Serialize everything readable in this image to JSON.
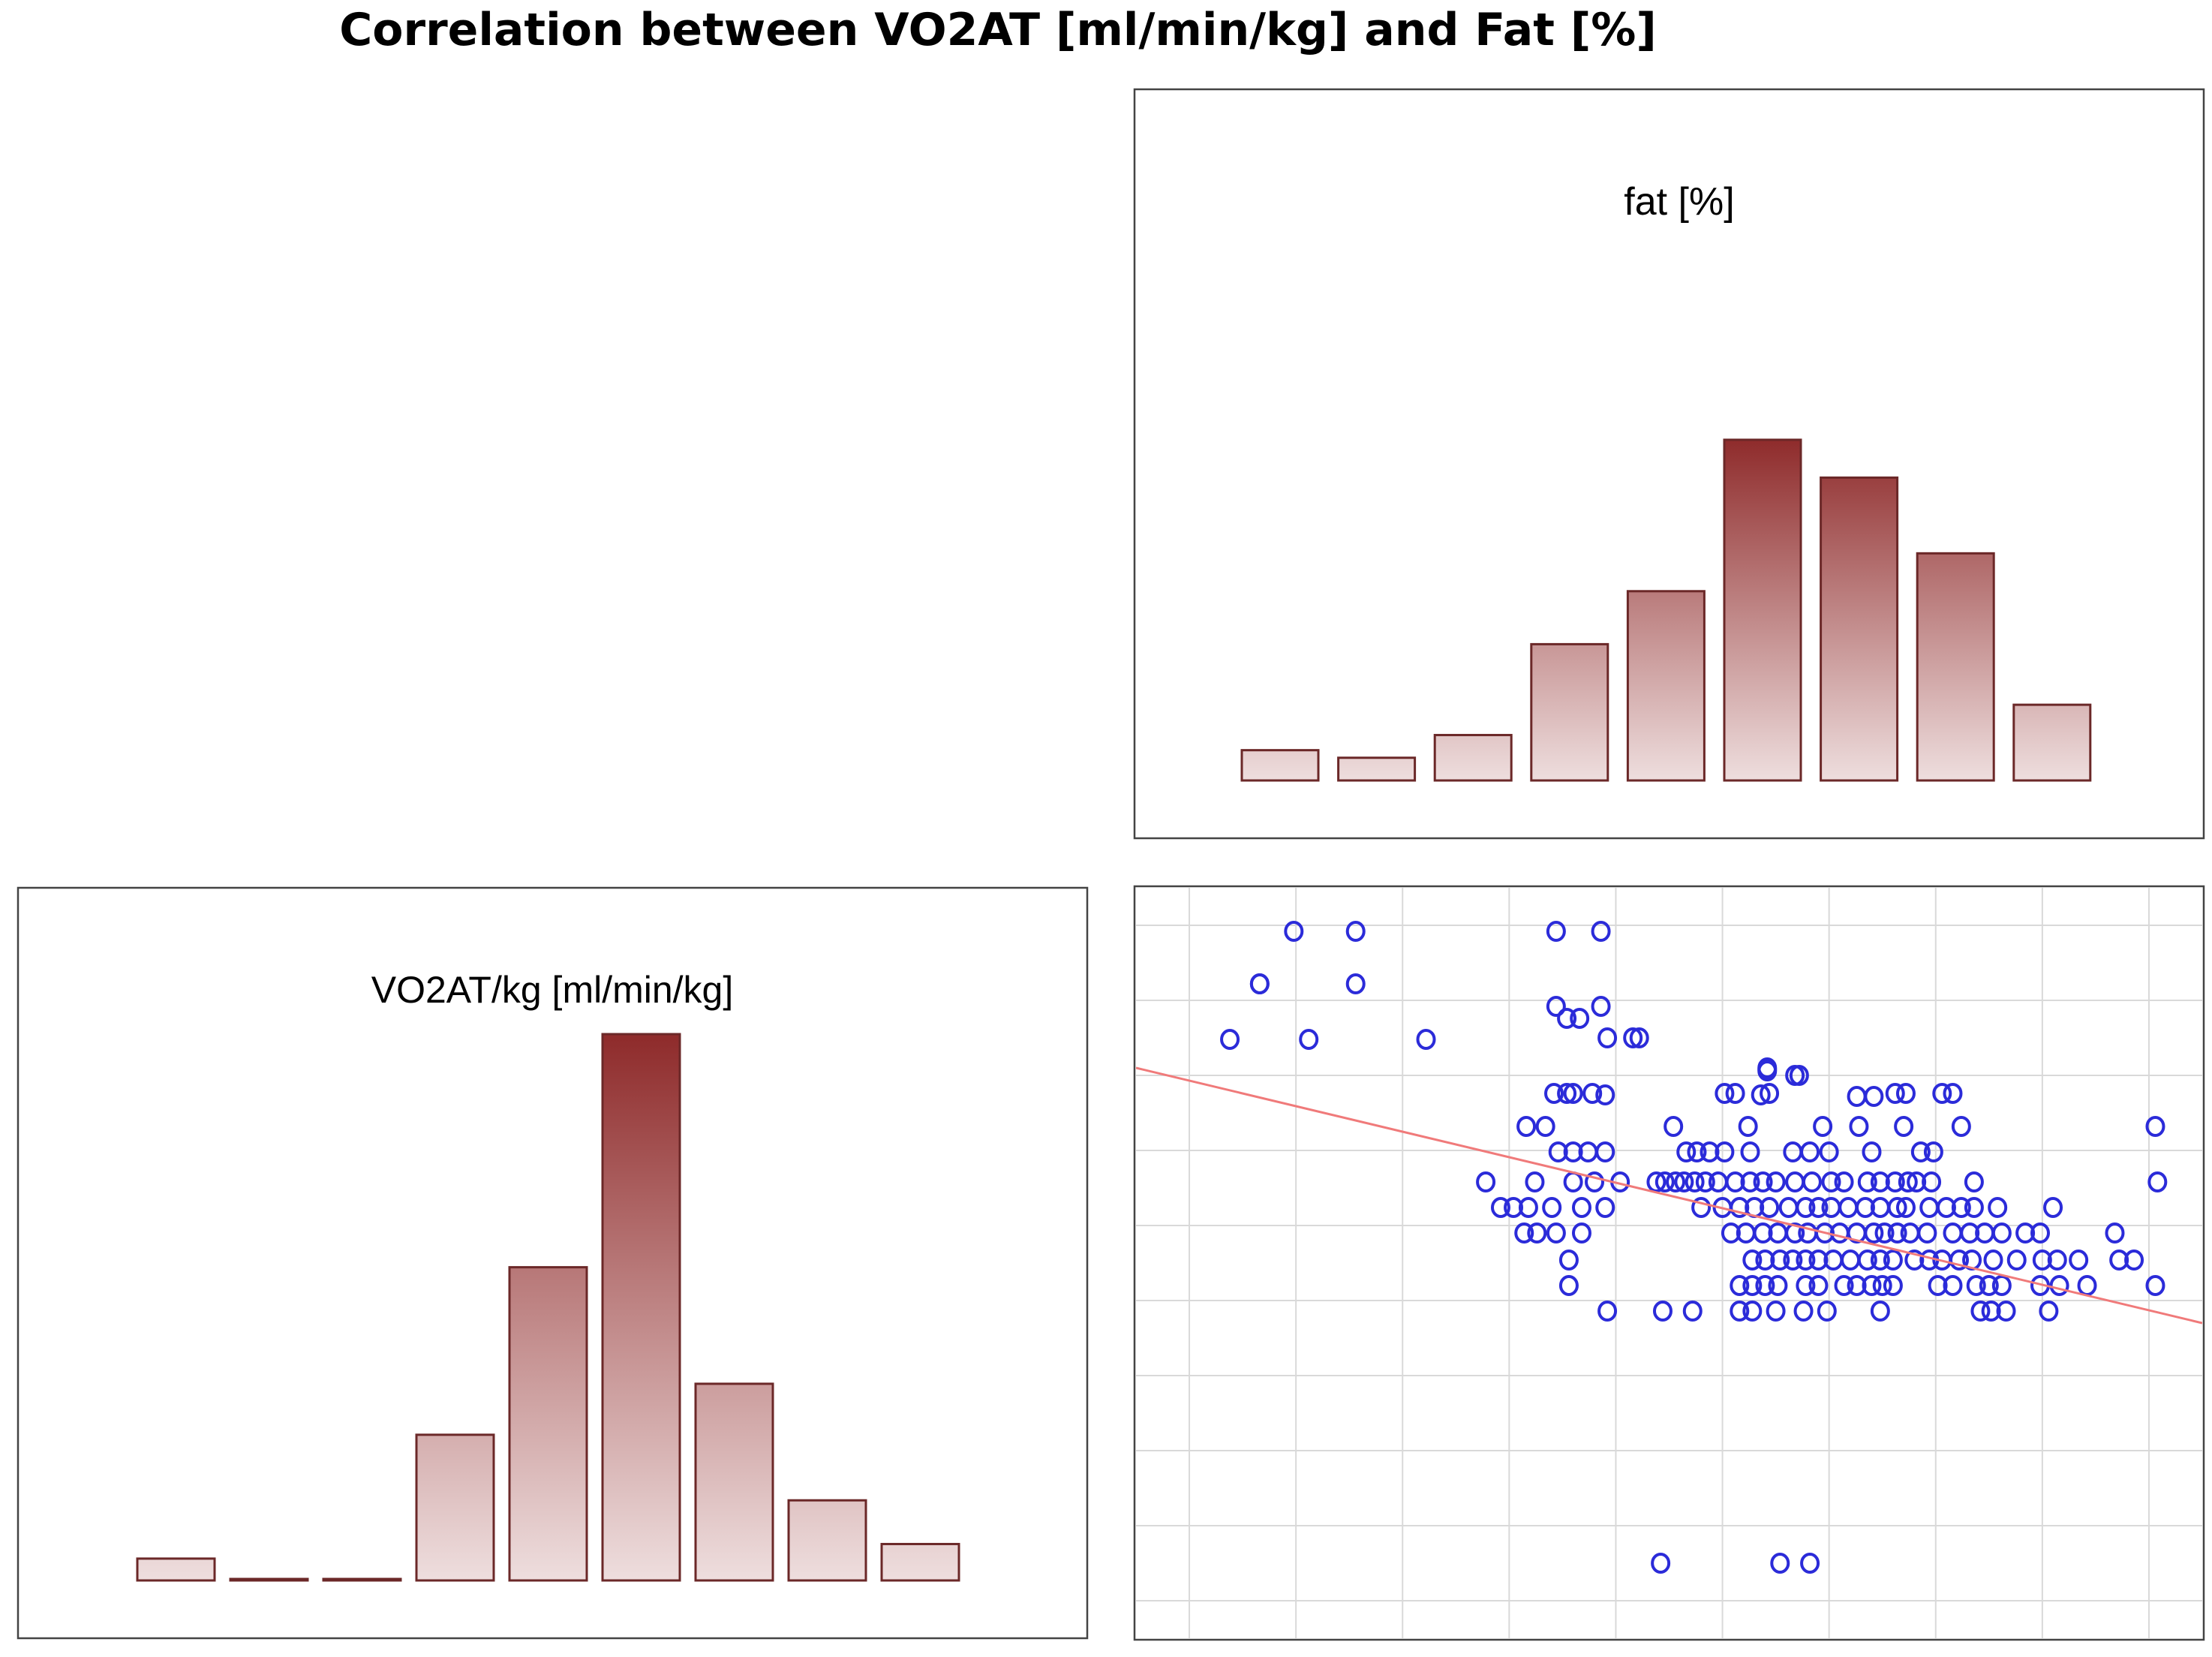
{
  "title": "Correlation between VO2AT [ml/min/kg] and Fat [%]",
  "colors": {
    "bar_top": "#8e2a2a",
    "bar_bottom": "#eedede",
    "bar_stroke": "#6b2828",
    "point": "#2b2bd9",
    "regression": "#f07a7a",
    "grid": "#d9d9d9",
    "frame": "#444444"
  },
  "chart_data": [
    {
      "type": "bar",
      "panel": "top-right",
      "title": "fat [%]",
      "values": [
        4,
        3,
        6,
        18,
        25,
        45,
        40,
        30,
        10
      ],
      "ylim": [
        0,
        45
      ],
      "grid": false
    },
    {
      "type": "bar",
      "panel": "bottom-left",
      "title": "VO2AT/kg [ml/min/kg]",
      "values": [
        3,
        0,
        0,
        20,
        43,
        75,
        27,
        11,
        5
      ],
      "ylim": [
        0,
        75
      ],
      "grid": false
    },
    {
      "type": "scatter",
      "panel": "bottom-right",
      "title": "",
      "xlabel": "",
      "ylabel": "",
      "xlim": [
        0,
        50
      ],
      "ylim": [
        0,
        50
      ],
      "grid": true,
      "x_gridlines": [
        2.5,
        7.5,
        12.5,
        17.5,
        22.5,
        27.5,
        32.5,
        37.5,
        42.5,
        47.5
      ],
      "y_gridlines": [
        2.5,
        7.5,
        12.5,
        17.5,
        22.5,
        27.5,
        32.5,
        37.5,
        42.5,
        47.5
      ],
      "regression_line": {
        "x": [
          0,
          50
        ],
        "y": [
          38,
          21
        ]
      },
      "x": [
        7.4,
        10.3,
        10.3,
        5.8,
        5.8,
        8.1,
        4.4,
        13.6,
        19.7,
        21.8,
        19.7,
        21.8,
        20.2,
        20.8,
        22.1,
        23.3,
        23.6,
        29.6,
        29.6,
        29.6,
        30.9,
        31.1,
        34.6,
        33.8,
        20.2,
        19.6,
        20.5,
        21.4,
        22.0,
        27.6,
        28.1,
        29.3,
        29.7,
        35.6,
        36.1,
        37.8,
        38.3,
        18.3,
        19.2,
        25.2,
        28.7,
        32.2,
        33.9,
        36.0,
        38.7,
        47.8,
        19.8,
        20.5,
        21.2,
        22.0,
        25.8,
        26.3,
        26.9,
        27.6,
        28.8,
        30.8,
        31.6,
        32.5,
        34.5,
        36.8,
        37.4,
        16.4,
        18.7,
        20.5,
        21.5,
        22.7,
        24.4,
        24.8,
        25.3,
        25.7,
        26.2,
        26.7,
        27.3,
        28.1,
        28.8,
        29.4,
        30.0,
        30.9,
        31.7,
        32.6,
        33.2,
        34.3,
        34.9,
        35.6,
        36.2,
        36.6,
        37.3,
        39.3,
        47.9,
        17.1,
        17.7,
        18.4,
        19.5,
        20.9,
        22.0,
        26.5,
        27.5,
        28.3,
        29.0,
        29.7,
        30.6,
        31.4,
        32.0,
        32.6,
        33.4,
        34.2,
        34.9,
        35.7,
        36.1,
        37.2,
        38.0,
        38.7,
        39.3,
        40.4,
        43.0,
        18.2,
        18.8,
        19.7,
        20.9,
        27.9,
        28.6,
        29.4,
        30.1,
        30.9,
        31.5,
        32.3,
        33.0,
        33.8,
        34.6,
        35.1,
        35.7,
        36.3,
        37.1,
        38.3,
        39.1,
        39.8,
        40.6,
        41.7,
        42.4,
        45.9,
        20.3,
        28.9,
        29.5,
        30.2,
        30.8,
        31.4,
        32.0,
        32.7,
        33.5,
        34.3,
        34.9,
        35.5,
        36.5,
        37.2,
        37.8,
        38.6,
        39.2,
        40.2,
        41.3,
        42.5,
        43.2,
        44.2,
        46.1,
        46.8,
        20.3,
        28.3,
        28.9,
        29.5,
        30.1,
        31.4,
        32.0,
        33.2,
        33.8,
        34.5,
        35.0,
        35.5,
        37.6,
        38.3,
        39.4,
        40.0,
        40.6,
        42.4,
        43.3,
        44.6,
        47.8,
        22.1,
        24.7,
        26.1,
        28.3,
        28.9,
        30.0,
        31.3,
        32.4,
        34.9,
        39.6,
        40.1,
        40.8,
        42.8,
        24.6,
        31.6,
        30.2
      ],
      "y": [
        47.1,
        47.1,
        43.6,
        43.6,
        43.6,
        39.9,
        39.9,
        39.9,
        47.1,
        47.1,
        42.1,
        42.1,
        41.3,
        41.3,
        40.0,
        40.0,
        40.0,
        38.0,
        37.9,
        37.8,
        37.5,
        37.5,
        36.1,
        36.1,
        36.3,
        36.3,
        36.3,
        36.3,
        36.2,
        36.3,
        36.3,
        36.2,
        36.3,
        36.3,
        36.3,
        36.3,
        36.3,
        34.1,
        34.1,
        34.1,
        34.1,
        34.1,
        34.1,
        34.1,
        34.1,
        34.1,
        32.4,
        32.4,
        32.4,
        32.4,
        32.4,
        32.4,
        32.4,
        32.4,
        32.4,
        32.4,
        32.4,
        32.4,
        32.4,
        32.4,
        32.4,
        30.4,
        30.4,
        30.4,
        30.4,
        30.4,
        30.4,
        30.4,
        30.4,
        30.4,
        30.4,
        30.4,
        30.4,
        30.4,
        30.4,
        30.4,
        30.4,
        30.4,
        30.4,
        30.4,
        30.4,
        30.4,
        30.4,
        30.4,
        30.4,
        30.4,
        30.4,
        30.4,
        30.4,
        28.7,
        28.7,
        28.7,
        28.7,
        28.7,
        28.7,
        28.7,
        28.7,
        28.7,
        28.7,
        28.7,
        28.7,
        28.7,
        28.7,
        28.7,
        28.7,
        28.7,
        28.7,
        28.7,
        28.7,
        28.7,
        28.7,
        28.7,
        28.7,
        28.7,
        28.7,
        27.0,
        27.0,
        27.0,
        27.0,
        27.0,
        27.0,
        27.0,
        27.0,
        27.0,
        27.0,
        27.0,
        27.0,
        27.0,
        27.0,
        27.0,
        27.0,
        27.0,
        27.0,
        27.0,
        27.0,
        27.0,
        27.0,
        27.0,
        27.0,
        27.0,
        25.2,
        25.2,
        25.2,
        25.2,
        25.2,
        25.2,
        25.2,
        25.2,
        25.2,
        25.2,
        25.2,
        25.2,
        25.2,
        25.2,
        25.2,
        25.2,
        25.2,
        25.2,
        25.2,
        25.2,
        25.2,
        25.2,
        25.2,
        25.2,
        23.5,
        23.5,
        23.5,
        23.5,
        23.5,
        23.5,
        23.5,
        23.5,
        23.5,
        23.5,
        23.5,
        23.5,
        23.5,
        23.5,
        23.5,
        23.5,
        23.5,
        23.5,
        23.5,
        23.5,
        23.5,
        21.8,
        21.8,
        21.8,
        21.8,
        21.8,
        21.8,
        21.8,
        21.8,
        21.8,
        21.8,
        21.8,
        21.8,
        21.8,
        5.0,
        5.0,
        5.0
      ]
    }
  ]
}
